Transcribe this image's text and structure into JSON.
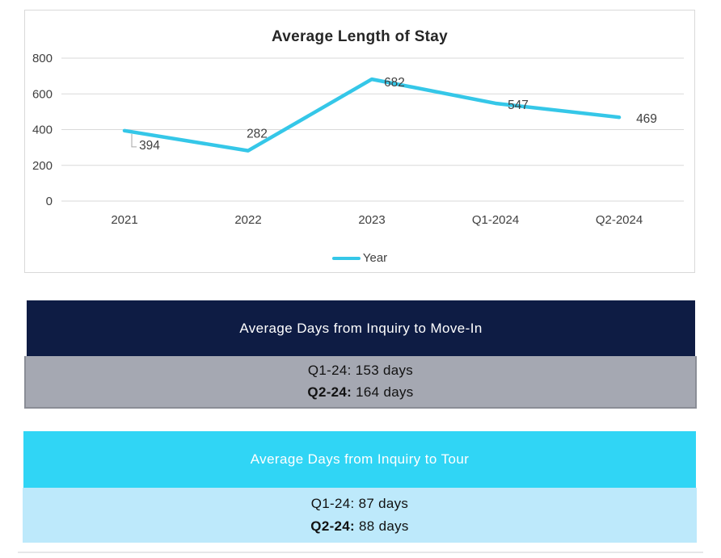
{
  "chart": {
    "title": "Average Length of Stay",
    "legend_label": "Year"
  },
  "chart_data": {
    "type": "line",
    "title": "Average Length of Stay",
    "categories": [
      "2021",
      "2022",
      "2023",
      "Q1-2024",
      "Q2-2024"
    ],
    "series": [
      {
        "name": "Year",
        "values": [
          394,
          282,
          682,
          547,
          469
        ]
      }
    ],
    "data_labels": [
      "394",
      "282",
      "682",
      "547",
      "469"
    ],
    "xlabel": "",
    "ylabel": "",
    "ylim": [
      0,
      800
    ],
    "yticks": [
      0,
      200,
      400,
      600,
      800
    ],
    "grid": true,
    "legend_position": "bottom",
    "line_color": "#35C7E8"
  },
  "cards": {
    "move_in": {
      "header": "Average Days from Inquiry to Move-In",
      "lines": [
        {
          "prefix": "Q1-24:",
          "rest": " 153 days"
        },
        {
          "prefix": "Q2-24:",
          "rest": " 164 days"
        }
      ]
    },
    "tour": {
      "header": "Average Days from Inquiry to Tour",
      "lines": [
        {
          "prefix": "Q1-24:",
          "rest": " 87 days"
        },
        {
          "prefix": "Q2-24:",
          "rest": " 88 days"
        }
      ]
    }
  },
  "colors": {
    "line": "#35C7E8",
    "navy_header": "#0E1C44",
    "gray_body": "#A5A8B2",
    "gray_border": "#8A8D96",
    "cyan_header": "#30D5F5",
    "light_cyan_body": "#BDE9FB",
    "gridline": "#D9D9D9",
    "axis_text": "#404040",
    "title_text": "#262626"
  }
}
